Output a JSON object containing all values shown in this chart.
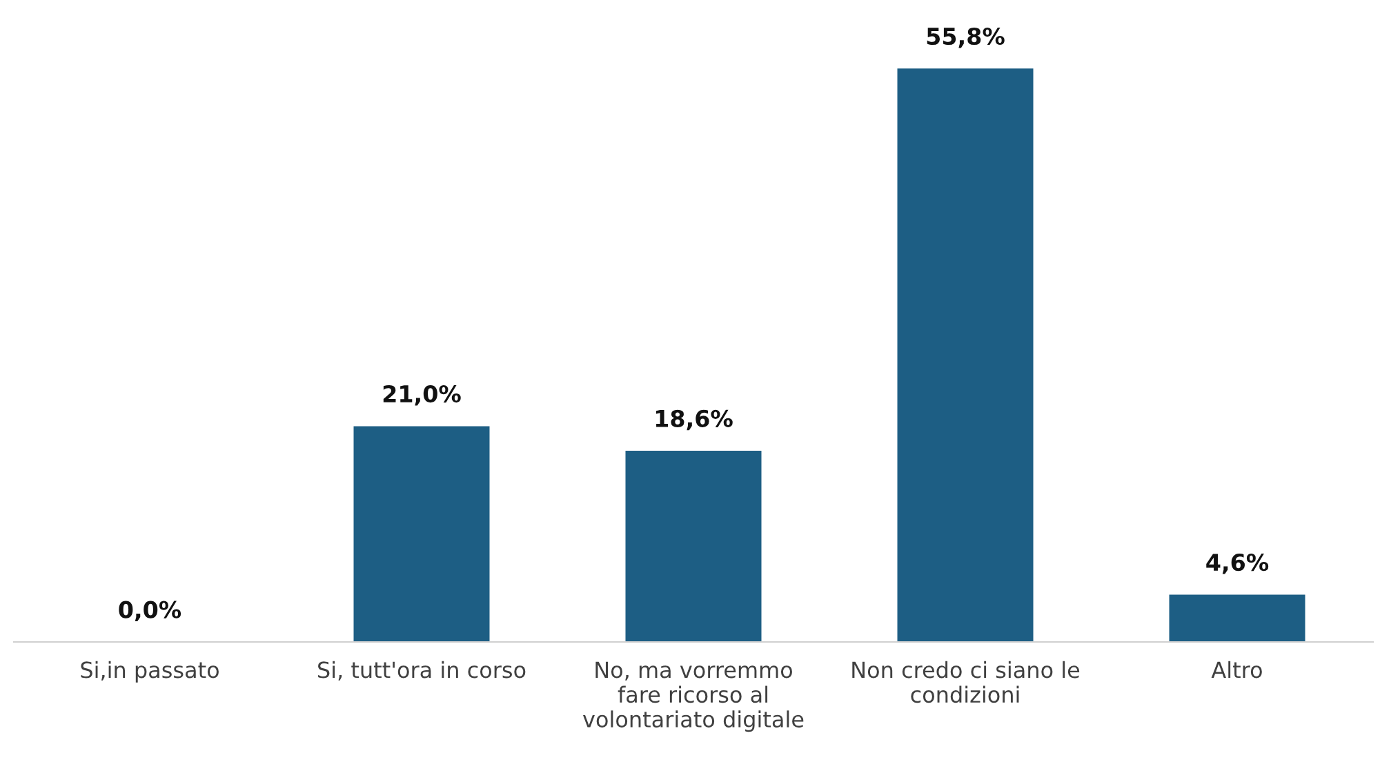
{
  "chart_data": {
    "type": "bar",
    "categories": [
      "Si,in passato",
      "Si, tutt'ora in corso",
      "No, ma vorremmo\nfare ricorso al\nvolontariato digitale",
      "Non credo ci siano le\ncondizioni",
      "Altro"
    ],
    "values": [
      0.0,
      21.0,
      18.6,
      55.8,
      4.6
    ],
    "value_labels": [
      "0,0%",
      "21,0%",
      "18,6%",
      "55,8%",
      "4,6%"
    ],
    "color": "#1d5e84",
    "grid": false,
    "legend": false
  }
}
